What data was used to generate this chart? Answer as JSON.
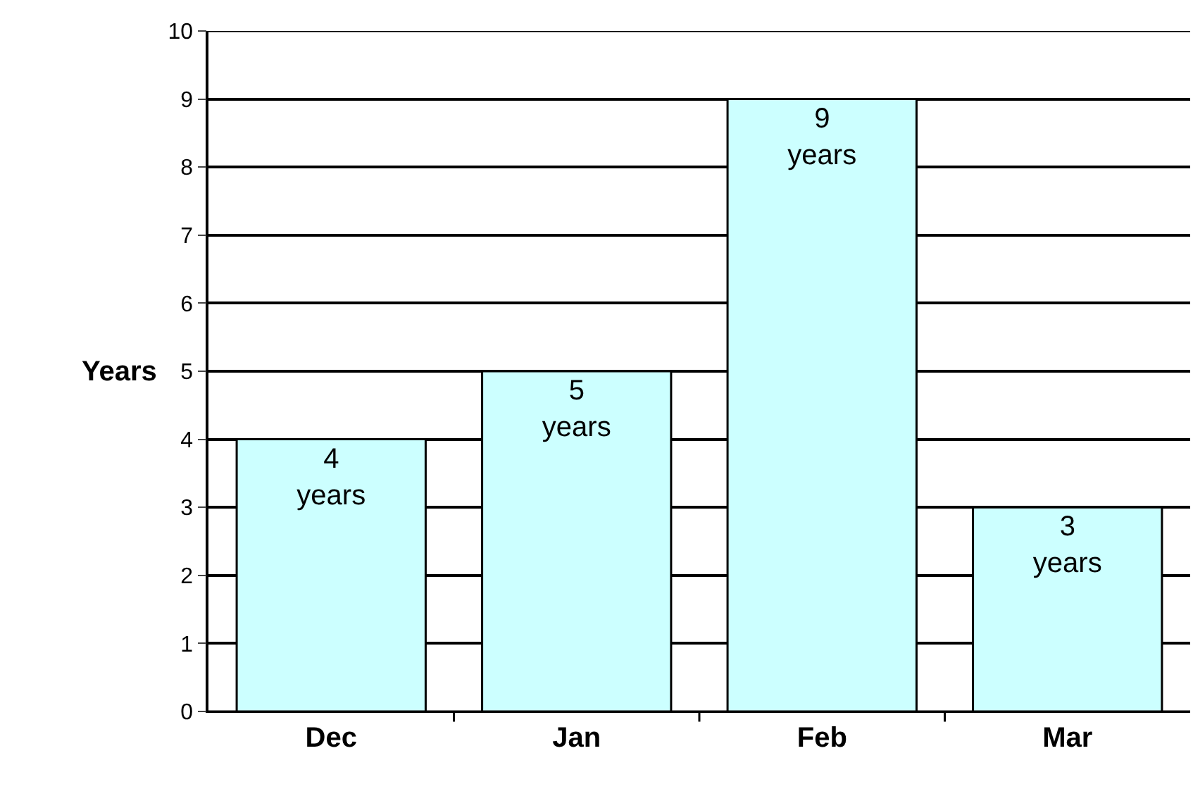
{
  "chart_data": {
    "type": "bar",
    "ylabel": "Years",
    "categories": [
      "Dec",
      "Jan",
      "Feb",
      "Mar"
    ],
    "values": [
      4,
      5,
      9,
      3
    ],
    "value_labels": [
      "4\nyears",
      "5\nyears",
      "9\nyears",
      "3\nyears"
    ],
    "color": "#ccffff",
    "ylim": [
      0,
      10
    ],
    "yticks": [
      0,
      1,
      2,
      3,
      4,
      5,
      6,
      7,
      8,
      9,
      10
    ],
    "grid": "y"
  }
}
